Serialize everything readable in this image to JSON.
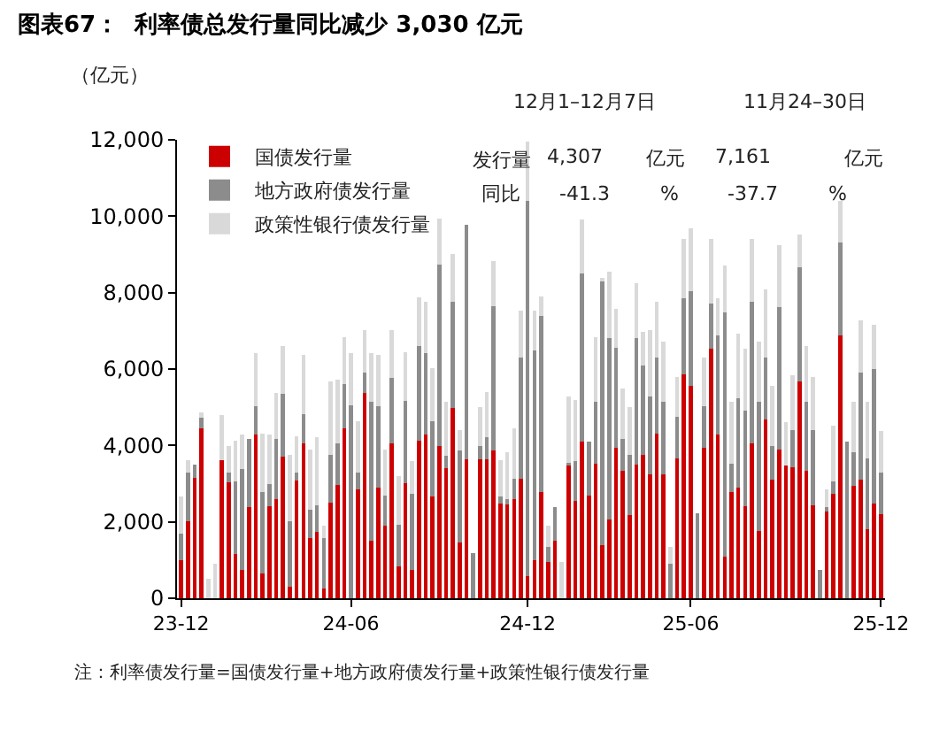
{
  "chart_data": {
    "type": "bar",
    "stacked": true,
    "title": "图表67：  利率债总发行量同比减少 3,030 亿元",
    "ylabel": "（亿元）",
    "categories": [
      "23-12",
      null,
      null,
      null,
      null,
      null,
      null,
      null,
      null,
      null,
      null,
      null,
      null,
      null,
      null,
      null,
      null,
      null,
      null,
      null,
      null,
      null,
      null,
      null,
      null,
      "24-06",
      null,
      null,
      null,
      null,
      null,
      null,
      null,
      null,
      null,
      null,
      null,
      null,
      null,
      null,
      null,
      null,
      null,
      null,
      null,
      null,
      null,
      null,
      null,
      null,
      null,
      "24-12",
      null,
      null,
      null,
      null,
      null,
      null,
      null,
      null,
      null,
      null,
      null,
      null,
      null,
      null,
      null,
      null,
      null,
      null,
      null,
      null,
      null,
      null,
      null,
      "25-06",
      null,
      null,
      null,
      null,
      null,
      null,
      null,
      null,
      null,
      null,
      null,
      null,
      null,
      null,
      null,
      null,
      null,
      null,
      null,
      null,
      null,
      null,
      null,
      null,
      null,
      null,
      null,
      "25-12"
    ],
    "series": [
      {
        "name": "国债发行量",
        "color": "#cc0000",
        "values": [
          990,
          2010,
          3160,
          4440,
          0,
          0,
          3620,
          3030,
          1160,
          740,
          2380,
          4290,
          650,
          2410,
          2600,
          3700,
          300,
          3080,
          4060,
          1580,
          1730,
          260,
          2510,
          2970,
          4440,
          0,
          2860,
          5370,
          1500,
          2890,
          1890,
          4060,
          840,
          3020,
          730,
          4130,
          4290,
          2660,
          3980,
          3410,
          4980,
          1470,
          3640,
          0,
          3640,
          3640,
          3860,
          2480,
          2460,
          2590,
          3130,
          570,
          990,
          2790,
          960,
          1500,
          0,
          3480,
          2540,
          4090,
          2690,
          3510,
          1390,
          2070,
          3930,
          3330,
          2170,
          3500,
          3750,
          3250,
          4320,
          3240,
          0,
          3670,
          5870,
          5560,
          0,
          3930,
          6530,
          4290,
          1080,
          2790,
          2890,
          2410,
          4060,
          1760,
          4680,
          3100,
          3900,
          3470,
          3440,
          5670,
          3340,
          2430,
          0,
          2280,
          2740,
          6870,
          0,
          2940,
          3100,
          1810,
          2480,
          2200
        ]
      },
      {
        "name": "地方政府债发行量",
        "color": "#8c8c8c",
        "values": [
          710,
          1270,
          340,
          280,
          0,
          0,
          0,
          250,
          1890,
          2650,
          1800,
          740,
          2120,
          590,
          1560,
          1660,
          1710,
          200,
          770,
          730,
          700,
          1320,
          1240,
          1090,
          1160,
          5060,
          420,
          540,
          3640,
          2140,
          800,
          1700,
          1090,
          2150,
          2010,
          2480,
          2120,
          1980,
          4750,
          310,
          2790,
          2390,
          6140,
          1190,
          340,
          570,
          3790,
          180,
          130,
          540,
          3170,
          9830,
          5500,
          4590,
          390,
          880,
          0,
          60,
          1050,
          4420,
          1400,
          1630,
          6920,
          4740,
          2630,
          850,
          1580,
          3310,
          2350,
          2040,
          1980,
          1900,
          910,
          1080,
          1980,
          2470,
          2230,
          1100,
          1180,
          2580,
          6410,
          720,
          2340,
          2500,
          3710,
          3380,
          1620,
          880,
          3720,
          0,
          960,
          3000,
          1800,
          1970,
          730,
          100,
          310,
          2450,
          4090,
          880,
          2810,
          1860,
          3510,
          1080
        ]
      },
      {
        "name": "政策性银行债发行量",
        "color": "#d9d9d9",
        "values": [
          960,
          340,
          0,
          140,
          500,
          910,
          1180,
          700,
          1080,
          900,
          0,
          1380,
          1550,
          1290,
          1210,
          1250,
          1740,
          960,
          1550,
          1590,
          1780,
          310,
          1930,
          1670,
          1240,
          1350,
          1360,
          1120,
          1270,
          1350,
          1210,
          1270,
          1270,
          1280,
          850,
          1270,
          1360,
          1380,
          1210,
          1420,
          1240,
          540,
          0,
          0,
          1030,
          1190,
          1170,
          960,
          1230,
          1310,
          1240,
          1550,
          1050,
          510,
          540,
          0,
          960,
          1750,
          1600,
          1400,
          0,
          1700,
          80,
          1750,
          1020,
          1300,
          1260,
          1430,
          870,
          1720,
          1470,
          1580,
          440,
          1040,
          1550,
          1650,
          0,
          1270,
          1690,
          980,
          1210,
          1630,
          1690,
          1620,
          1630,
          1580,
          1780,
          1590,
          1620,
          1130,
          1430,
          840,
          1470,
          1390,
          0,
          470,
          1470,
          1080,
          0,
          1320,
          1370,
          1470,
          1160,
          1090
        ]
      }
    ],
    "ylim": [
      0,
      12000
    ],
    "yticks": [
      {
        "value": 0,
        "label": "0"
      },
      {
        "value": 2000,
        "label": "2,000"
      },
      {
        "value": 4000,
        "label": "4,000"
      },
      {
        "value": 6000,
        "label": "6,000"
      },
      {
        "value": 8000,
        "label": "8,000"
      },
      {
        "value": 10000,
        "label": "10,000"
      },
      {
        "value": 12000,
        "label": "12,000"
      }
    ],
    "legend": "top left",
    "annotations": [
      "12月1–12月7日",
      "11月24–30日",
      "发行量",
      "同比",
      "4,307",
      "亿元",
      "-41.3",
      "%",
      "7,161",
      "亿元",
      "-37.7",
      "%",
      "注：利率债发行量=国债发行量+地方政府债发行量+政策性银行债发行量"
    ]
  }
}
